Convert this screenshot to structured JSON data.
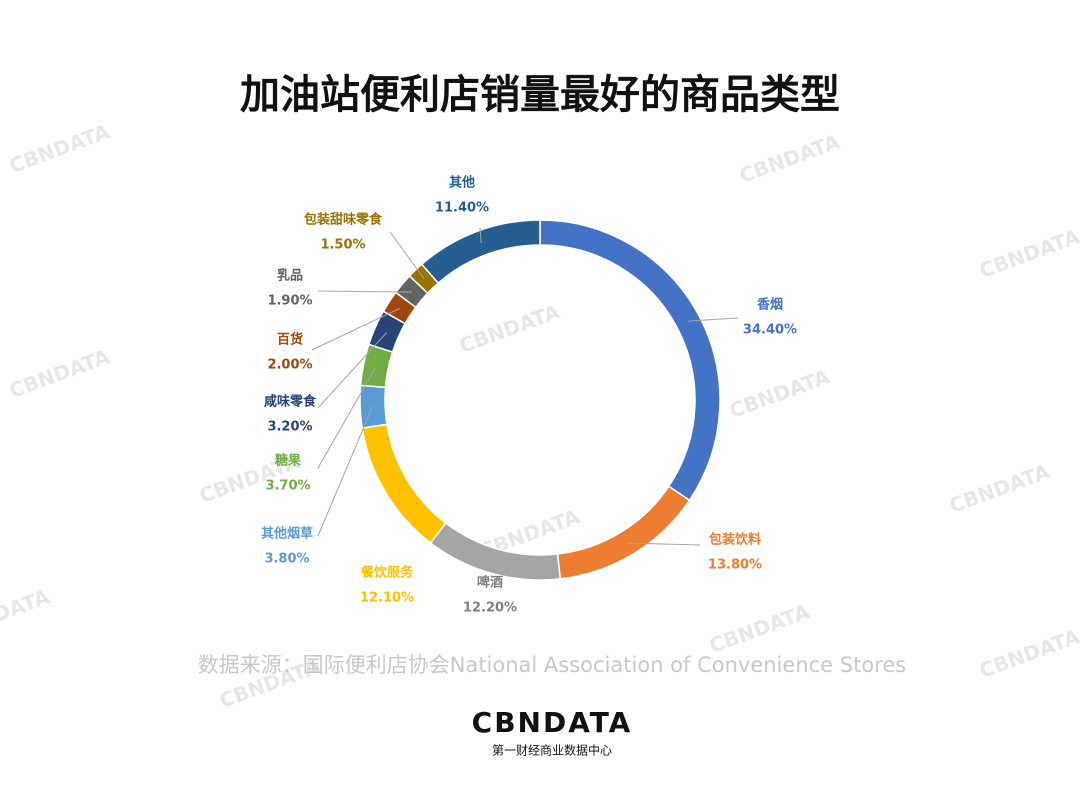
{
  "chart_data": {
    "type": "pie",
    "donut": true,
    "title": "加油站便利店销量最好的商品类型",
    "categories": [
      "香烟",
      "包装饮料",
      "啤酒",
      "餐饮服务",
      "其他烟草",
      "糖果",
      "咸味零食",
      "百货",
      "乳品",
      "包装甜味零食",
      "其他"
    ],
    "values": [
      34.4,
      13.8,
      12.2,
      12.1,
      3.8,
      3.7,
      3.2,
      2.0,
      1.9,
      1.5,
      11.4
    ],
    "value_labels": [
      "34.40%",
      "13.80%",
      "12.20%",
      "12.10%",
      "3.80%",
      "3.70%",
      "3.20%",
      "2.00%",
      "1.90%",
      "1.50%",
      "11.40%"
    ],
    "colors": [
      "#4472c4",
      "#ed7d31",
      "#a5a5a5",
      "#ffc000",
      "#5b9bd5",
      "#70ad47",
      "#264478",
      "#9e480e",
      "#636363",
      "#997300",
      "#255e91"
    ],
    "source": "数据来源：国际便利店协会National Association of Convenience Stores"
  },
  "logo": {
    "name": "CBNDATA",
    "subtitle": "第一财经商业数据中心"
  }
}
